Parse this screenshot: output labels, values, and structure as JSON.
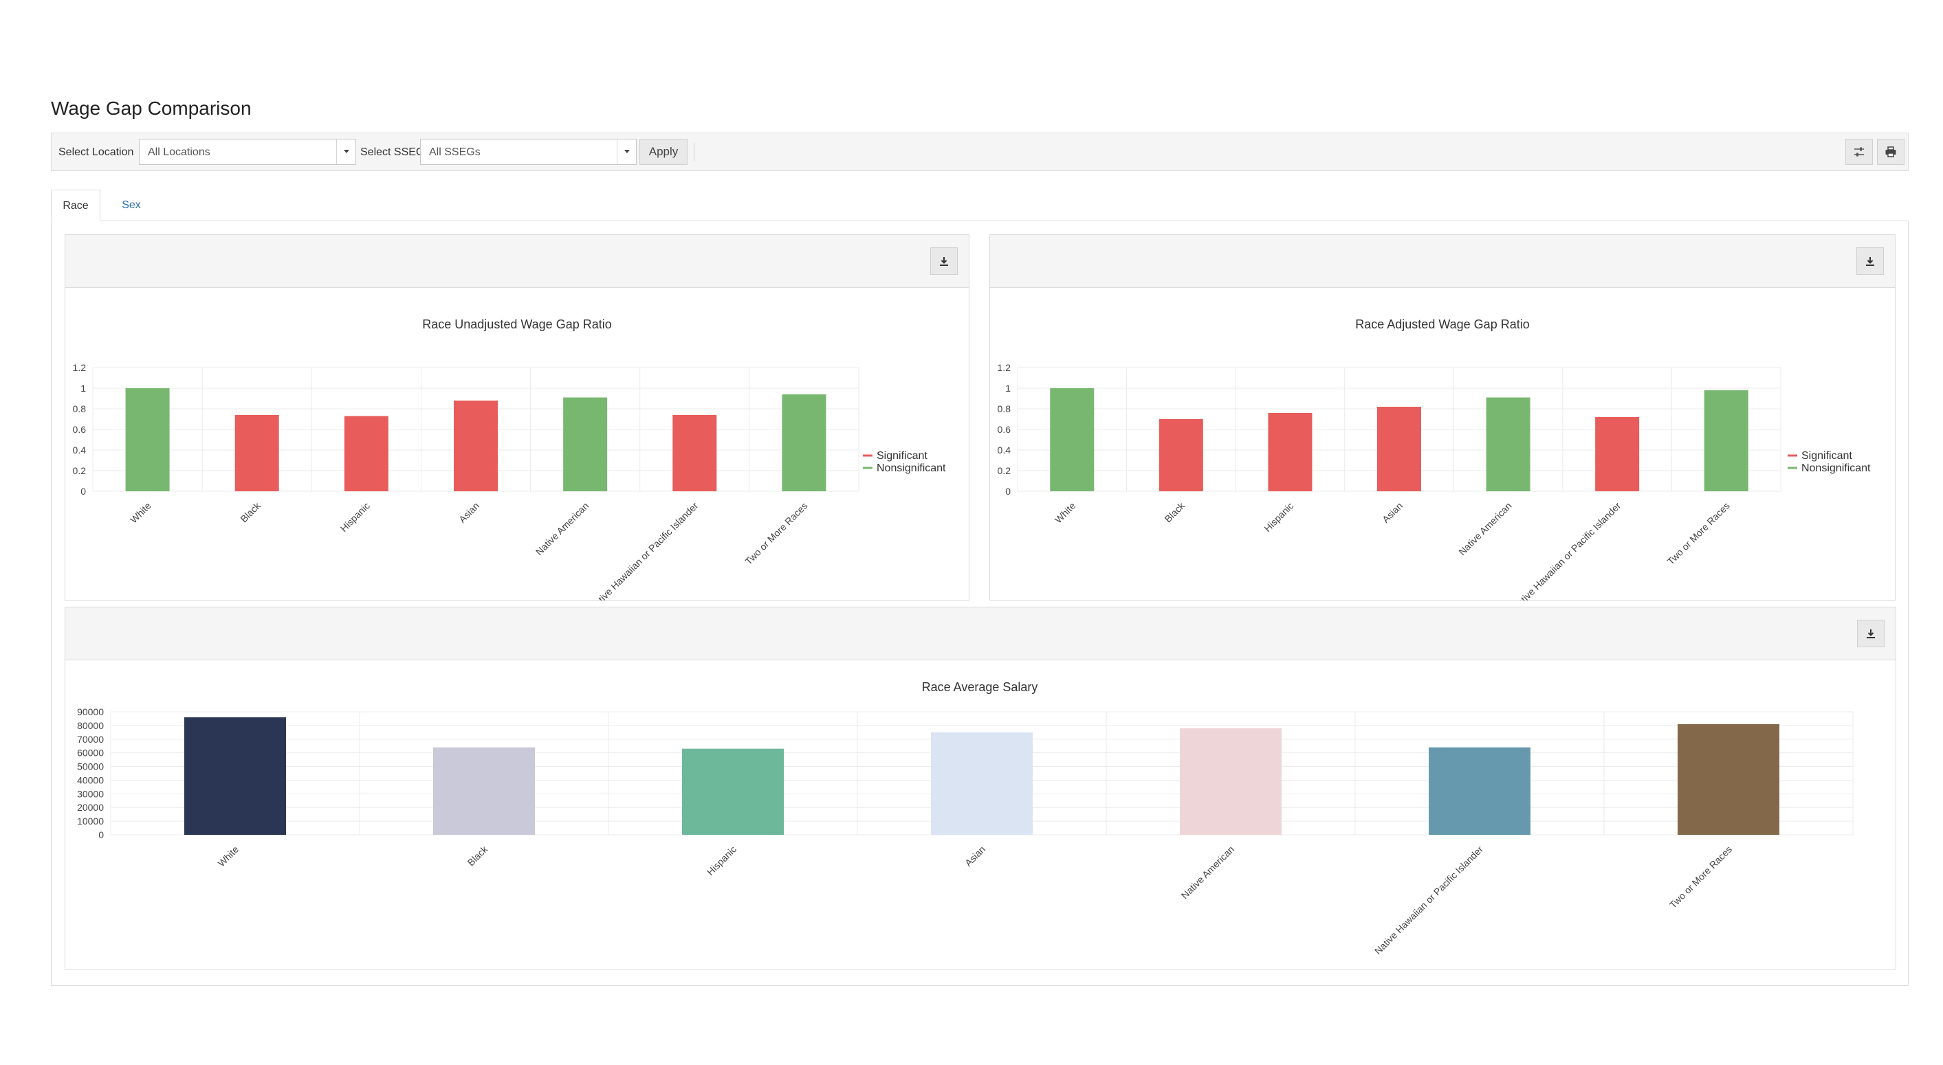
{
  "page": {
    "title": "Wage Gap Comparison"
  },
  "toolbar": {
    "location_label": "Select Location",
    "location_value": "All Locations",
    "sseg_label": "Select SSEG",
    "sseg_value": "All SSEGs",
    "apply_label": "Apply",
    "icons": [
      "sliders-icon",
      "print-icon"
    ]
  },
  "tabs": [
    {
      "label": "Race",
      "active": true
    },
    {
      "label": "Sex",
      "active": false
    }
  ],
  "colors": {
    "significant": "#e85c5c",
    "nonsignificant": "#77b770"
  },
  "chart_data": [
    {
      "type": "bar",
      "title": "Race Unadjusted Wage Gap Ratio",
      "categories": [
        "White",
        "Black",
        "Hispanic",
        "Asian",
        "Native American",
        "Native Hawaiian or Pacific Islander",
        "Two or More Races"
      ],
      "values": [
        1.0,
        0.74,
        0.73,
        0.88,
        0.91,
        0.74,
        0.94
      ],
      "significance": [
        "Nonsignificant",
        "Significant",
        "Significant",
        "Significant",
        "Nonsignificant",
        "Significant",
        "Nonsignificant"
      ],
      "ylim": [
        0,
        1.2
      ],
      "yticks": [
        0,
        0.2,
        0.4,
        0.6,
        0.8,
        1,
        1.2
      ],
      "legend": [
        "Significant",
        "Nonsignificant"
      ],
      "legend_position": "right",
      "grid": true
    },
    {
      "type": "bar",
      "title": "Race Adjusted Wage Gap Ratio",
      "categories": [
        "White",
        "Black",
        "Hispanic",
        "Asian",
        "Native American",
        "Native Hawaiian or Pacific Islander",
        "Two or More Races"
      ],
      "values": [
        1.0,
        0.7,
        0.76,
        0.82,
        0.91,
        0.72,
        0.98
      ],
      "significance": [
        "Nonsignificant",
        "Significant",
        "Significant",
        "Significant",
        "Nonsignificant",
        "Significant",
        "Nonsignificant"
      ],
      "ylim": [
        0,
        1.2
      ],
      "yticks": [
        0,
        0.2,
        0.4,
        0.6,
        0.8,
        1,
        1.2
      ],
      "legend": [
        "Significant",
        "Nonsignificant"
      ],
      "legend_position": "right",
      "grid": true
    },
    {
      "type": "bar",
      "title": "Race Average Salary",
      "categories": [
        "White",
        "Black",
        "Hispanic",
        "Asian",
        "Native American",
        "Native Hawaiian or Pacific Islander",
        "Two or More Races"
      ],
      "values": [
        86000,
        64000,
        63000,
        75000,
        78000,
        64000,
        81000
      ],
      "colors": [
        "#2b3554",
        "#c9c9d9",
        "#6db89a",
        "#dae4f2",
        "#eed5d7",
        "#6699ad",
        "#84684a"
      ],
      "ylim": [
        0,
        90000
      ],
      "yticks": [
        0,
        10000,
        20000,
        30000,
        40000,
        50000,
        60000,
        70000,
        80000,
        90000
      ],
      "grid": true
    }
  ]
}
